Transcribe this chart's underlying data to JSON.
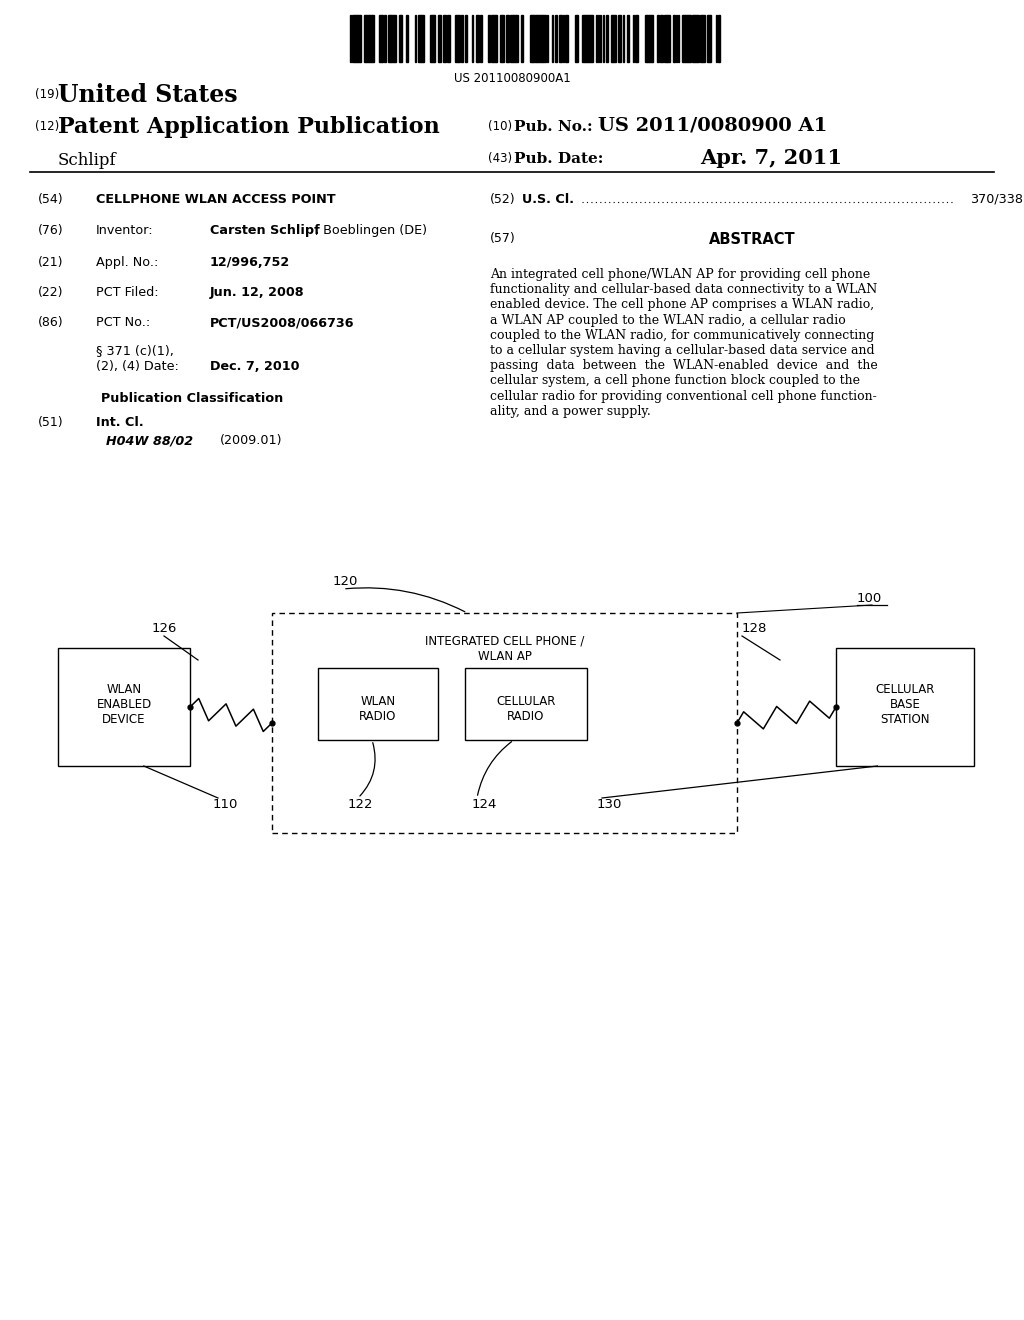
{
  "background_color": "#ffffff",
  "barcode_text": "US 20110080900A1",
  "patent_number": "US 2011/0080900 A1",
  "pub_date": "Apr. 7, 2011",
  "country": "United States",
  "kind": "Patent Application Publication",
  "inventor_label": "Schlipf",
  "field_54_label": "(54)",
  "field_54_text": "CELLPHONE WLAN ACCESS POINT",
  "field_76_label": "(76)",
  "field_76_key": "Inventor:",
  "field_76_val_bold": "Carsten Schlipf",
  "field_76_val_normal": ", Boeblingen (DE)",
  "field_21_label": "(21)",
  "field_21_key": "Appl. No.:",
  "field_21_val": "12/996,752",
  "field_22_label": "(22)",
  "field_22_key": "PCT Filed:",
  "field_22_val": "Jun. 12, 2008",
  "field_86_label": "(86)",
  "field_86_key": "PCT No.:",
  "field_86_val": "PCT/US2008/066736",
  "field_371_line1": "§ 371 (c)(1),",
  "field_371_line2": "(2), (4) Date:",
  "field_371_val": "Dec. 7, 2010",
  "field_pub_class": "Publication Classification",
  "field_51_label": "(51)",
  "field_51_key": "Int. Cl.",
  "field_51_val1": "H04W 88/02",
  "field_51_val2": "(2009.01)",
  "field_52_label": "(52)",
  "field_52_key": "U.S. Cl.",
  "field_52_val": "370/338",
  "field_57_label": "(57)",
  "field_57_key": "ABSTRACT",
  "abstract_lines": [
    "An integrated cell phone/WLAN AP for providing cell phone",
    "functionality and cellular-based data connectivity to a WLAN",
    "enabled device. The cell phone AP comprises a WLAN radio,",
    "a WLAN AP coupled to the WLAN radio, a cellular radio",
    "coupled to the WLAN radio, for communicatively connecting",
    "to a cellular system having a cellular-based data service and",
    "passing  data  between  the  WLAN-enabled  device  and  the",
    "cellular system, a cell phone function block coupled to the",
    "cellular radio for providing conventional cell phone function-",
    "ality, and a power supply."
  ],
  "lbl_100": "100",
  "lbl_120": "120",
  "lbl_126": "126",
  "lbl_128": "128",
  "lbl_122": "122",
  "lbl_124": "124",
  "lbl_110": "110",
  "lbl_130": "130",
  "box_main_line1": "INTEGRATED CELL PHONE /",
  "box_main_line2": "WLAN AP",
  "box_wlan_line1": "WLAN",
  "box_wlan_line2": "RADIO",
  "box_cell_line1": "CELLULAR",
  "box_cell_line2": "RADIO",
  "box_left_line1": "WLAN",
  "box_left_line2": "ENABLED",
  "box_left_line3": "DEVICE",
  "box_right_line1": "CELLULAR",
  "box_right_line2": "BASE",
  "box_right_line3": "STATION"
}
